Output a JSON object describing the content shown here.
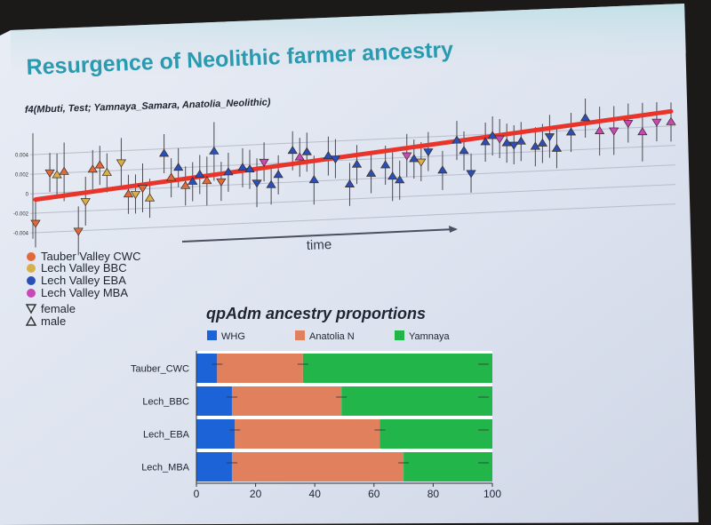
{
  "slide": {
    "title": "Resurgence of Neolithic farmer ancestry",
    "colors": {
      "screen": "#dde3f0",
      "title": "#2a9ab0",
      "tauber_cwc": "#e06a3c",
      "lech_bbc": "#d8b04a",
      "lech_eba": "#2a4fb8",
      "lech_mba": "#c848b8",
      "trend": "#e8342a",
      "whg": "#1b63d6",
      "anatolia": "#e0805c",
      "yamnaya": "#22b64a"
    }
  },
  "f4_plot": {
    "label": "f4(Mbuti, Test; Yamnaya_Samara, Anatolia_Neolithic)",
    "y_ticks": [
      "0.004",
      "0.002",
      "0",
      "-0.002",
      "-0.004"
    ],
    "time_label": "time",
    "legend": [
      {
        "label": "Tauber Valley CWC",
        "color": "#e06a3c"
      },
      {
        "label": "Lech Valley BBC",
        "color": "#d8b04a"
      },
      {
        "label": "Lech Valley EBA",
        "color": "#2a4fb8"
      },
      {
        "label": "Lech Valley MBA",
        "color": "#c848b8"
      }
    ],
    "sex_legend": [
      {
        "label": "female",
        "icon": "triangle-down-icon"
      },
      {
        "label": "male",
        "icon": "triangle-up-icon"
      }
    ]
  },
  "chart_data": [
    {
      "type": "scatter",
      "title": "",
      "ylabel": "f4(Mbuti, Test; Yamnaya_Samara, Anatolia_Neolithic)",
      "xlabel": "time",
      "ylim": [
        -0.0045,
        0.0068
      ],
      "y_ticks": [
        0.004,
        0.002,
        0,
        -0.002,
        -0.004
      ],
      "trend_line": {
        "x": [
          1,
          90
        ],
        "y": [
          -0.0006,
          0.0055
        ]
      },
      "series": [
        {
          "name": "Tauber Valley CWC",
          "x": [
            1,
            3,
            5,
            7,
            9,
            10,
            14,
            16,
            20,
            22,
            25,
            27
          ],
          "y": [
            -0.003,
            0.0021,
            0.0021,
            -0.004,
            0.0022,
            0.0026,
            -0.0005,
            0.0001,
            0.001,
            0.0001,
            0.0005,
            0.0004
          ],
          "sex": [
            "f",
            "f",
            "m",
            "f",
            "m",
            "m",
            "m",
            "f",
            "m",
            "m",
            "m",
            "f"
          ],
          "err": [
            0.0025,
            0.002,
            0.003,
            0.0025,
            0.002,
            0.002,
            0.002,
            0.0025,
            0.002,
            0.002,
            0.0025,
            0.002
          ]
        },
        {
          "name": "Lech Valley BBC",
          "x": [
            4,
            8,
            11,
            13,
            15,
            17,
            55
          ],
          "y": [
            0.0018,
            -0.001,
            0.0018,
            0.0028,
            -0.0005,
            -0.001,
            0.0015
          ],
          "sex": [
            "m",
            "f",
            "m",
            "f",
            "f",
            "m",
            "f"
          ],
          "err": [
            0.0022,
            0.0025,
            0.002,
            0.0025,
            0.002,
            0.002,
            0.002
          ]
        },
        {
          "name": "Lech Valley EBA",
          "x": [
            19,
            21,
            23,
            24,
            26,
            28,
            30,
            31,
            32,
            34,
            35,
            37,
            39,
            40,
            42,
            43,
            45,
            46,
            48,
            50,
            51,
            52,
            54,
            56,
            58,
            60,
            61,
            62,
            64,
            65,
            67,
            68,
            69,
            71,
            72,
            73,
            74,
            76,
            78
          ],
          "y": [
            0.0035,
            0.002,
            0.0005,
            0.0012,
            0.0035,
            0.0013,
            0.0017,
            0.0015,
            0.0001,
            -0.0002,
            0.0008,
            0.0032,
            0.003,
            0.0001,
            0.0025,
            0.0022,
            -0.0005,
            0.0015,
            0.0005,
            0.0013,
            0.0001,
            -0.0003,
            0.0018,
            0.0025,
            0.0005,
            0.0035,
            0.0024,
            0.0001,
            0.0032,
            0.0038,
            0.003,
            0.0028,
            0.0031,
            0.0025,
            0.0028,
            0.0035,
            0.0022,
            0.0038,
            0.0052
          ],
          "sex": [
            "m",
            "m",
            "m",
            "m",
            "m",
            "m",
            "m",
            "m",
            "f",
            "m",
            "m",
            "m",
            "m",
            "m",
            "m",
            "f",
            "m",
            "m",
            "m",
            "m",
            "m",
            "m",
            "m",
            "f",
            "m",
            "m",
            "m",
            "f",
            "m",
            "m",
            "m",
            "f",
            "m",
            "m",
            "m",
            "f",
            "m",
            "m",
            "m"
          ],
          "err": [
            0.002,
            0.002,
            0.002,
            0.002,
            0.003,
            0.002,
            0.002,
            0.002,
            0.0025,
            0.002,
            0.002,
            0.002,
            0.002,
            0.0025,
            0.002,
            0.002,
            0.0022,
            0.002,
            0.002,
            0.002,
            0.0025,
            0.002,
            0.002,
            0.002,
            0.002,
            0.002,
            0.002,
            0.002,
            0.002,
            0.002,
            0.002,
            0.002,
            0.002,
            0.002,
            0.002,
            0.0022,
            0.002,
            0.002,
            0.002
          ]
        },
        {
          "name": "Lech Valley MBA",
          "x": [
            33,
            38,
            53,
            66,
            80,
            82,
            84,
            86,
            88,
            90
          ],
          "y": [
            0.0022,
            0.0025,
            0.0022,
            0.0035,
            0.0038,
            0.0038,
            0.0045,
            0.0035,
            0.0045,
            0.0044
          ],
          "sex": [
            "f",
            "m",
            "f",
            "f",
            "m",
            "f",
            "f",
            "m",
            "f",
            "m"
          ],
          "err": [
            0.002,
            0.002,
            0.0022,
            0.002,
            0.0025,
            0.0025,
            0.002,
            0.003,
            0.002,
            0.002
          ]
        }
      ]
    },
    {
      "type": "bar",
      "orientation": "horizontal",
      "stacked": true,
      "title": "qpAdm ancestry proportions",
      "categories": [
        "Tauber_CWC",
        "Lech_BBC",
        "Lech_EBA",
        "Lech_MBA"
      ],
      "series": [
        {
          "name": "WHG",
          "values": [
            7,
            12,
            13,
            12
          ],
          "color": "#1b63d6"
        },
        {
          "name": "Anatolia N",
          "values": [
            29,
            37,
            49,
            58
          ],
          "color": "#e0805c"
        },
        {
          "name": "Yamnaya",
          "values": [
            64,
            51,
            38,
            30
          ],
          "color": "#22b64a"
        }
      ],
      "xlim": [
        0,
        100
      ],
      "x_ticks": [
        0,
        20,
        40,
        60,
        80,
        100
      ]
    }
  ]
}
